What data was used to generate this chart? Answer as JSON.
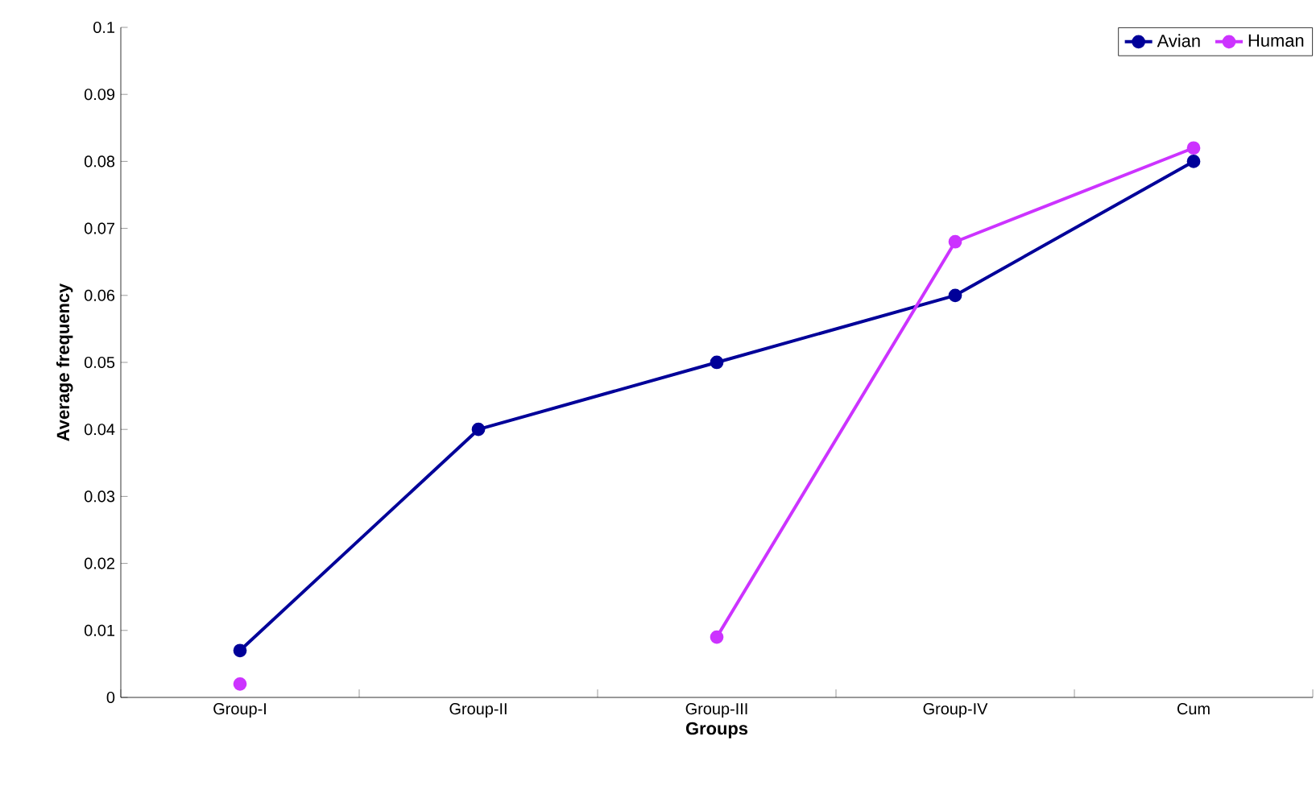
{
  "chart_data": {
    "type": "line",
    "xlabel": "Groups",
    "ylabel": "Average frequency",
    "categories": [
      "Group-I",
      "Group-II",
      "Group-III",
      "Group-IV",
      "Cum"
    ],
    "series": [
      {
        "name": "Avian",
        "color": "#000099",
        "values": [
          0.007,
          0.04,
          0.05,
          0.06,
          0.08
        ]
      },
      {
        "name": "Human",
        "color": "#cc33ff",
        "values": [
          0.002,
          null,
          0.009,
          0.068,
          0.082
        ]
      }
    ],
    "ylim": [
      0,
      0.1
    ],
    "yticks": [
      0,
      0.01,
      0.02,
      0.03,
      0.04,
      0.05,
      0.06,
      0.07,
      0.08,
      0.09,
      0.1
    ],
    "legend": "top right",
    "marker": "circle",
    "line_style": "solid",
    "grid": false
  }
}
